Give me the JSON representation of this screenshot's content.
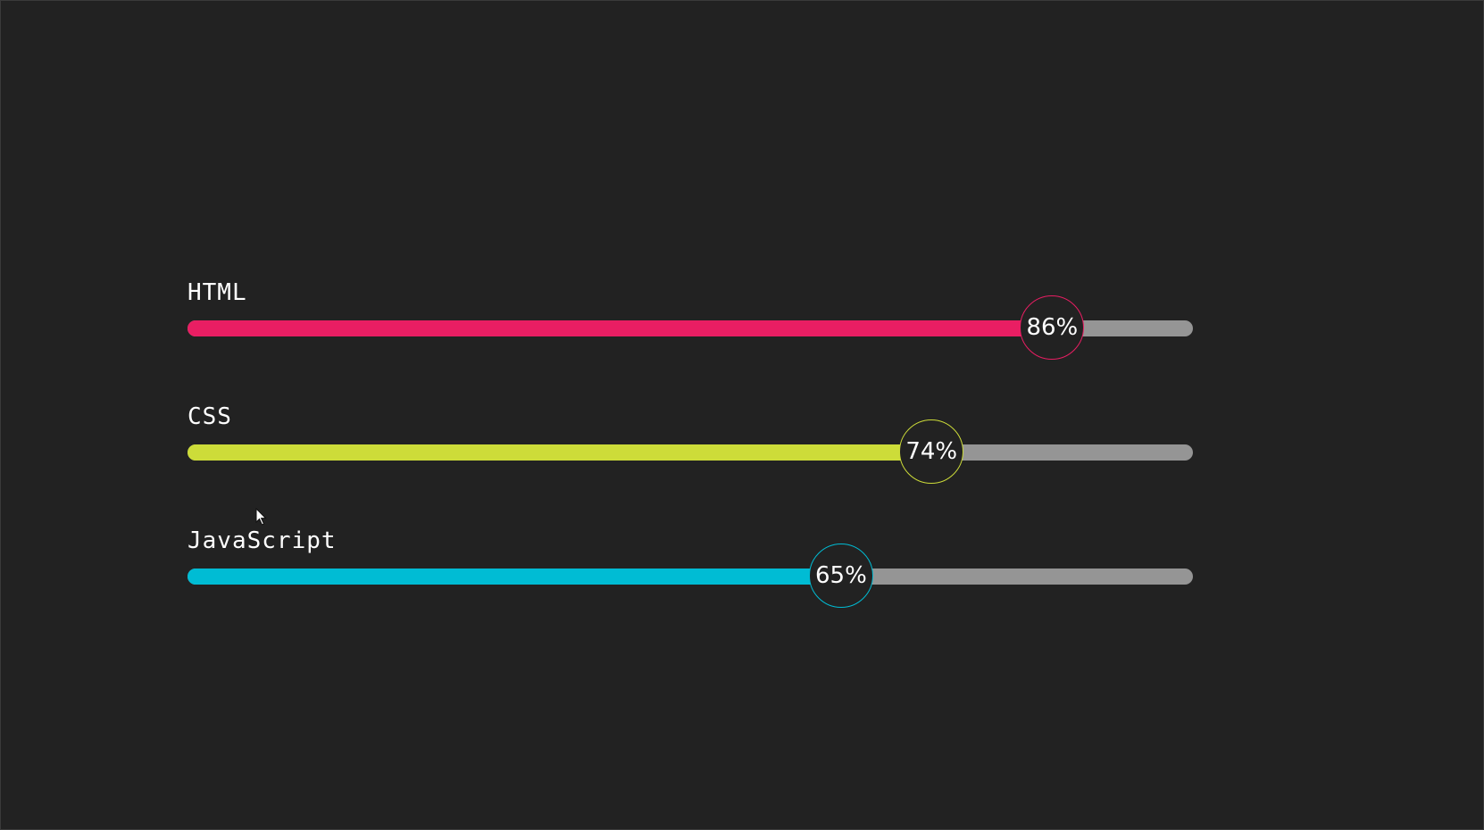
{
  "skills": [
    {
      "name": "HTML",
      "percent": 86,
      "label": "86%",
      "color": "#e91e63"
    },
    {
      "name": "CSS",
      "percent": 74,
      "label": "74%",
      "color": "#cddc39"
    },
    {
      "name": "JavaScript",
      "percent": 65,
      "label": "65%",
      "color": "#00bcd4"
    }
  ],
  "colors": {
    "background": "#222222",
    "track": "#959595",
    "text": "#ffffff"
  },
  "icons": {
    "cursor": "mouse-pointer-icon"
  }
}
